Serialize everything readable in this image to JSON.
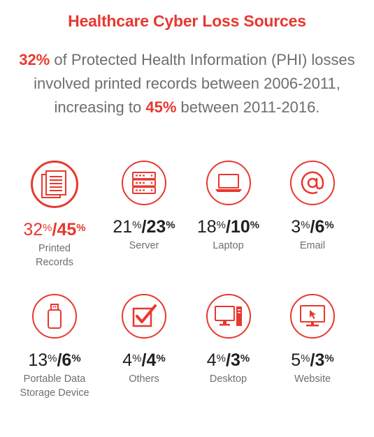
{
  "title": "Healthcare Cyber Loss Sources",
  "intro": {
    "line1_pct": "32%",
    "line1_rest": " of Protected Health Information (PHI) losses",
    "line2": "involved printed records between 2006-2011,",
    "line3_pre": "increasing to ",
    "line3_pct": "45%",
    "line3_post": " between 2011-2016."
  },
  "accent_color": "#e8382f",
  "items": [
    {
      "icon": "printed-records-icon",
      "first": "32",
      "second": "45",
      "label": "Printed\nRecords",
      "highlight": true
    },
    {
      "icon": "server-icon",
      "first": "21",
      "second": "23",
      "label": "Server",
      "highlight": false
    },
    {
      "icon": "laptop-icon",
      "first": "18",
      "second": "10",
      "label": "Laptop",
      "highlight": false
    },
    {
      "icon": "email-icon",
      "first": "3",
      "second": "6",
      "label": "Email",
      "highlight": false
    },
    {
      "icon": "usb-drive-icon",
      "first": "13",
      "second": "6",
      "label": "Portable Data\nStorage Device",
      "highlight": false
    },
    {
      "icon": "checkbox-icon",
      "first": "4",
      "second": "4",
      "label": "Others",
      "highlight": false
    },
    {
      "icon": "desktop-icon",
      "first": "4",
      "second": "3",
      "label": "Desktop",
      "highlight": false
    },
    {
      "icon": "website-icon",
      "first": "5",
      "second": "3",
      "label": "Website",
      "highlight": false
    }
  ],
  "pct_symbol": "%",
  "separator": "/"
}
